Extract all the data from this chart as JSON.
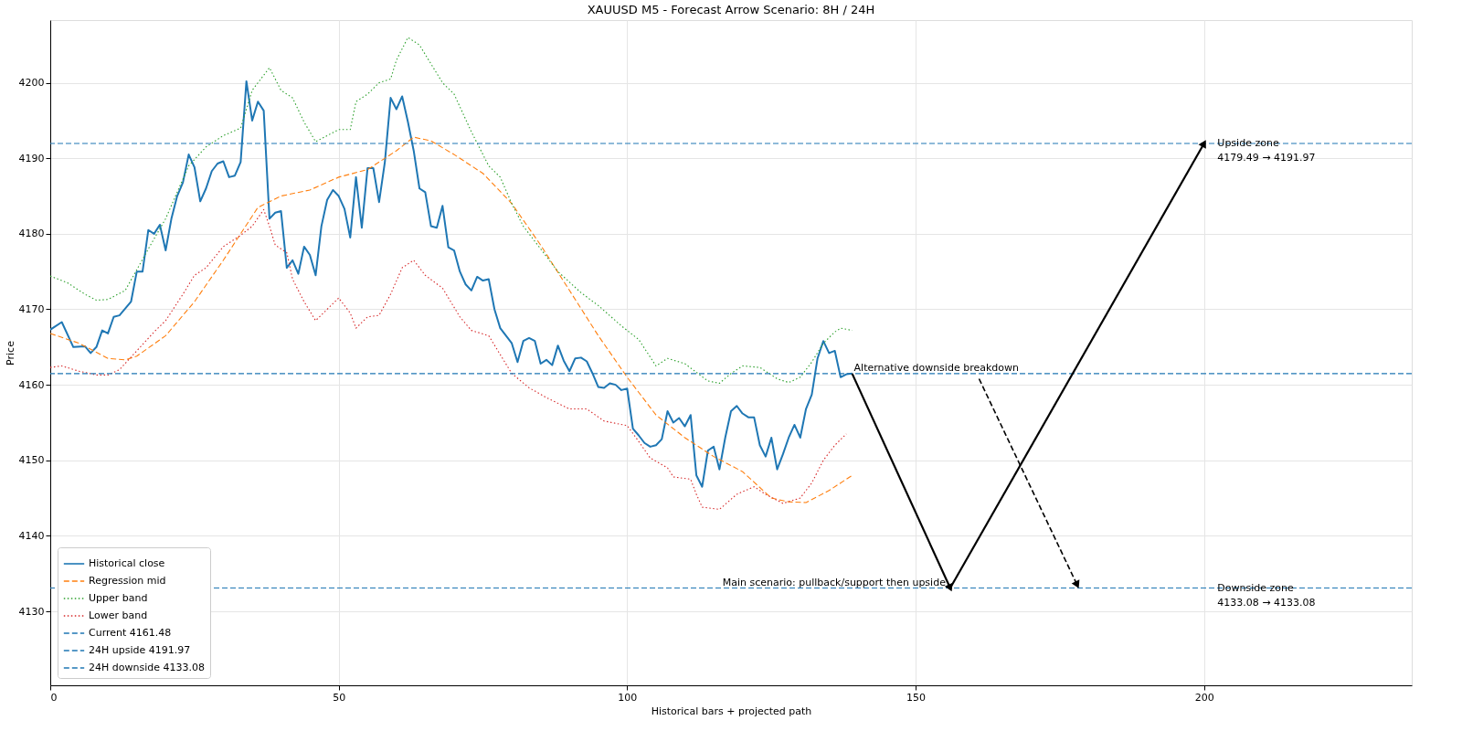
{
  "chart_data": {
    "type": "line",
    "title": "XAUUSD M5 - Forecast Arrow Scenario: 8H / 24H",
    "xlabel": "Historical bars + projected path",
    "ylabel": "Price",
    "xlim": [
      0,
      236
    ],
    "ylim": [
      4120.2,
      4208.3
    ],
    "xticks": [
      0,
      50,
      100,
      150,
      200
    ],
    "yticks": [
      4130,
      4140,
      4150,
      4160,
      4170,
      4180,
      4190,
      4200
    ],
    "grid": true,
    "legend": "bottom left",
    "series": [
      {
        "name": "Historical close",
        "color": "#1f77b4",
        "line_style": "solid",
        "x": [
          0,
          2,
          4,
          6,
          7,
          8,
          9,
          10,
          11,
          12,
          14,
          15,
          16,
          17,
          18,
          19,
          20,
          21,
          22,
          23,
          24,
          25,
          26,
          27,
          28,
          29,
          30,
          31,
          32,
          33,
          34,
          35,
          36,
          37,
          38,
          39,
          40,
          41,
          42,
          43,
          44,
          45,
          46,
          47,
          48,
          49,
          50,
          51,
          52,
          53,
          54,
          55,
          56,
          57,
          58,
          59,
          60,
          61,
          62,
          63,
          64,
          65,
          66,
          67,
          68,
          69,
          70,
          71,
          72,
          73,
          74,
          75,
          76,
          77,
          78,
          79,
          80,
          81,
          82,
          83,
          84,
          85,
          86,
          87,
          88,
          89,
          90,
          91,
          92,
          93,
          94,
          95,
          96,
          97,
          98,
          99,
          100,
          101,
          102,
          103,
          104,
          105,
          106,
          107,
          108,
          109,
          110,
          111,
          112,
          113,
          114,
          115,
          116,
          117,
          118,
          119,
          120,
          121,
          122,
          123,
          124,
          125,
          126,
          127,
          128,
          129,
          130,
          131,
          132,
          133,
          134,
          135,
          136,
          137,
          138,
          139
        ],
        "values": [
          4167.3,
          4168.3,
          4165,
          4165.1,
          4164.2,
          4165,
          4167.2,
          4166.8,
          4169,
          4169.2,
          4171,
          4175,
          4175,
          4180.5,
          4180,
          4181.2,
          4177.8,
          4182,
          4185,
          4186.8,
          4190.5,
          4188.8,
          4184.3,
          4186,
          4188.3,
          4189.3,
          4189.6,
          4187.5,
          4187.7,
          4189.5,
          4200.2,
          4195,
          4197.5,
          4196.3,
          4182,
          4182.8,
          4183,
          4175.5,
          4176.5,
          4174.7,
          4178.3,
          4177.2,
          4174.5,
          4181,
          4184.5,
          4185.8,
          4185,
          4183.3,
          4179.5,
          4187.5,
          4180.8,
          4188.7,
          4188.7,
          4184.2,
          4189.5,
          4198,
          4196.5,
          4198.2,
          4194.8,
          4191,
          4186,
          4185.5,
          4181,
          4180.8,
          4183.7,
          4178.2,
          4177.8,
          4175,
          4173.3,
          4172.5,
          4174.3,
          4173.8,
          4174,
          4170,
          4167.5,
          4166.5,
          4165.5,
          4163,
          4165.8,
          4166.2,
          4165.8,
          4162.8,
          4163.3,
          4162.6,
          4165.2,
          4163.2,
          4161.8,
          4163.5,
          4163.6,
          4163.1,
          4161.5,
          4159.7,
          4159.6,
          4160.2,
          4160,
          4159.3,
          4159.5,
          4154.2,
          4153.3,
          4152.3,
          4151.8,
          4152,
          4152.8,
          4156.5,
          4155,
          4155.6,
          4154.5,
          4156,
          4148,
          4146.5,
          4151.3,
          4151.8,
          4148.8,
          4153,
          4156.5,
          4157.2,
          4156.2,
          4155.7,
          4155.7,
          4152,
          4150.5,
          4153,
          4148.8,
          4150.8,
          4153,
          4154.7,
          4153,
          4156.8,
          4158.7,
          4163.5,
          4165.8,
          4164.2,
          4164.5,
          4161,
          4161.4,
          4161.5
        ]
      },
      {
        "name": "Regression mid",
        "color": "#ff7f0e",
        "line_style": "dashed",
        "x": [
          0,
          5,
          10,
          13,
          15,
          20,
          25,
          30,
          33,
          36,
          40,
          45,
          50,
          55,
          60,
          63,
          66,
          70,
          75,
          80,
          85,
          90,
          95,
          100,
          105,
          110,
          115,
          120,
          125,
          128,
          131,
          135,
          139
        ],
        "values": [
          4166.8,
          4165.5,
          4163.5,
          4163.3,
          4163.8,
          4166.5,
          4171,
          4176.5,
          4180,
          4183.5,
          4185,
          4185.8,
          4187.5,
          4188.5,
          4191,
          4192.8,
          4192.3,
          4190.5,
          4188,
          4184,
          4178.5,
          4172.5,
          4166.5,
          4161,
          4156,
          4153,
          4150.5,
          4148.5,
          4145,
          4144.5,
          4144.4,
          4146,
          4148
        ]
      },
      {
        "name": "Upper band",
        "color": "#2ca02c",
        "line_style": "dotted",
        "x": [
          0,
          3,
          6,
          8,
          10,
          13,
          17,
          20,
          24,
          27,
          30,
          33,
          35,
          37,
          38,
          40,
          42,
          44,
          46,
          48,
          50,
          52,
          53,
          55,
          57,
          59,
          60,
          62,
          64,
          66,
          68,
          70,
          73,
          76,
          78,
          80,
          82,
          85,
          88,
          92,
          95,
          99,
          102,
          105,
          107,
          110,
          114,
          116,
          118,
          120,
          123,
          126,
          128,
          130,
          132,
          134,
          136,
          137,
          139
        ],
        "values": [
          4174.4,
          4173.5,
          4172,
          4171.2,
          4171.3,
          4172.5,
          4178,
          4182,
          4189,
          4191.5,
          4193,
          4194,
          4199,
          4201,
          4202,
          4199,
          4198,
          4194.8,
          4192.2,
          4193,
          4193.8,
          4193.8,
          4197.5,
          4198.5,
          4200,
          4200.5,
          4203,
          4206,
          4205,
          4202.5,
          4200,
          4198.5,
          4193.5,
          4189,
          4187.5,
          4184,
          4181,
          4178,
          4175,
          4172.2,
          4170.5,
          4167.8,
          4166,
          4162.5,
          4163.5,
          4162.8,
          4160.5,
          4160.2,
          4161.5,
          4162.5,
          4162.3,
          4160.8,
          4160.3,
          4161,
          4163,
          4165.5,
          4167,
          4167.5,
          4167.2
        ]
      },
      {
        "name": "Lower band",
        "color": "#d62728",
        "line_style": "dotted",
        "x": [
          0,
          2,
          5,
          8,
          10,
          12,
          15,
          18,
          20,
          23,
          25,
          27,
          30,
          33,
          35,
          37,
          38,
          39,
          41,
          42,
          44,
          46,
          48,
          50,
          52,
          53,
          55,
          57,
          59,
          61,
          63,
          65,
          68,
          71,
          73,
          76,
          78,
          80,
          83,
          86,
          90,
          93,
          96,
          100,
          102,
          104,
          107,
          108,
          111,
          112,
          113,
          116,
          119,
          122,
          124,
          127,
          130,
          132,
          134,
          136,
          138
        ],
        "values": [
          4162.3,
          4162.5,
          4161.8,
          4161.3,
          4161.3,
          4162,
          4164.5,
          4167,
          4168.5,
          4172,
          4174.5,
          4175.5,
          4178.3,
          4179.8,
          4181,
          4183.2,
          4181,
          4178.5,
          4177.5,
          4174,
          4171,
          4168.5,
          4170,
          4171.5,
          4169.5,
          4167.5,
          4169,
          4169.2,
          4172,
          4175.5,
          4176.5,
          4174.5,
          4172.8,
          4169,
          4167.2,
          4166.5,
          4164,
          4161.5,
          4159.6,
          4158.3,
          4156.8,
          4156.8,
          4155.2,
          4154.6,
          4152.5,
          4150.3,
          4149,
          4147.8,
          4147.5,
          4145.5,
          4143.8,
          4143.5,
          4145.5,
          4146.5,
          4145.5,
          4144.3,
          4145,
          4147,
          4150,
          4152,
          4153.5
        ]
      },
      {
        "color": "#000000",
        "line_style": "solid",
        "marker": "triangle",
        "x": [
          139,
          156
        ],
        "values": [
          4161.48,
          4133.08
        ]
      },
      {
        "color": "#000000",
        "line_style": "solid",
        "marker": "triangle",
        "x": [
          156,
          200
        ],
        "values": [
          4133.08,
          4191.97
        ]
      },
      {
        "color": "#000000",
        "line_style": "dashed",
        "marker": "triangle",
        "x": [
          161,
          178
        ],
        "values": [
          4160.8,
          4133.5
        ]
      }
    ],
    "ref_lines": [
      {
        "axis": "y",
        "value": 4161.48,
        "label": "Current 4161.48",
        "color": "#1f77b4",
        "line_style": "dashed"
      },
      {
        "axis": "y",
        "value": 4191.97,
        "label": "24H upside 4191.97",
        "color": "#1f77b4",
        "line_style": "dashed"
      },
      {
        "axis": "y",
        "value": 4133.08,
        "label": "24H downside 4133.08",
        "color": "#1f77b4",
        "line_style": "dashed"
      }
    ],
    "annotations": [
      {
        "text": "Alternative downside breakdown",
        "x": 139,
        "y": 4161.48
      },
      {
        "text": "Main scenario: pullback/support then upside",
        "x": 156,
        "y": 4133.08
      },
      {
        "text": "Upside zone\n4179.49 → 4191.97",
        "x": 202,
        "y": 4191.97
      },
      {
        "text": "Downside zone\n4133.08 → 4133.08",
        "x": 202,
        "y": 4133.08
      }
    ]
  }
}
